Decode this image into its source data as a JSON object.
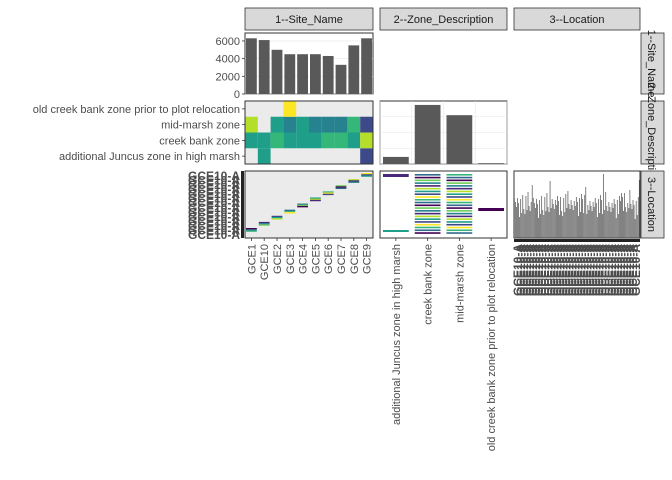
{
  "chart_data": {
    "type": "pairs",
    "variables": [
      "1--Site_Name",
      "2--Zone_Description",
      "3--Location"
    ],
    "row_strip_labels": [
      "1--Site_Name",
      "2--Zone_Description",
      "3--Location"
    ],
    "sites": [
      "GCE1",
      "GCE10",
      "GCE2",
      "GCE3",
      "GCE4",
      "GCE5",
      "GCE6",
      "GCE7",
      "GCE8",
      "GCE9"
    ],
    "site_counts": [
      6300,
      6100,
      5000,
      4500,
      4500,
      4500,
      4300,
      3300,
      5500,
      6300
    ],
    "site_count_axis": {
      "ticks": [
        0,
        2000,
        4000,
        6000
      ],
      "tick_labels": [
        "0",
        "2000",
        "4000",
        "6000"
      ],
      "ylim": [
        0,
        6900
      ]
    },
    "zones": [
      "additional Juncus zone in high marsh",
      "creek bank zone",
      "mid-marsh zone",
      "old creek bank zone prior to plot relocation"
    ],
    "zone_counts": [
      9,
      75,
      62,
      1
    ],
    "zone_count_ylim": [
      0,
      80
    ],
    "heatmap_site_by_zone": [
      [
        0.0,
        0.58,
        0.89,
        0.0
      ],
      [
        0.5,
        0.6,
        0.0,
        0.0
      ],
      [
        0.0,
        0.62,
        0.5,
        0.0
      ],
      [
        0.0,
        0.55,
        0.48,
        1.0
      ],
      [
        0.0,
        0.57,
        0.5,
        0.0
      ],
      [
        0.0,
        0.6,
        0.45,
        0.0
      ],
      [
        0.0,
        0.62,
        0.48,
        0.0
      ],
      [
        0.0,
        0.68,
        0.4,
        0.0
      ],
      [
        0.0,
        0.52,
        0.7,
        0.0
      ],
      [
        0.18,
        0.92,
        0.22,
        0.0
      ]
    ],
    "location_tick_label": "GCE10-A"
  },
  "colors": {
    "bar_fill": "#595959",
    "panel_background": "#ebebeb",
    "strip_background": "#d9d9d9",
    "panel_border": "#333333",
    "grid_line": "#ffffff",
    "viridis": [
      "#440154",
      "#482878",
      "#3e4989",
      "#31688e",
      "#26828e",
      "#1f9e89",
      "#35b779",
      "#6ece58",
      "#b5de2b",
      "#fde725"
    ]
  }
}
